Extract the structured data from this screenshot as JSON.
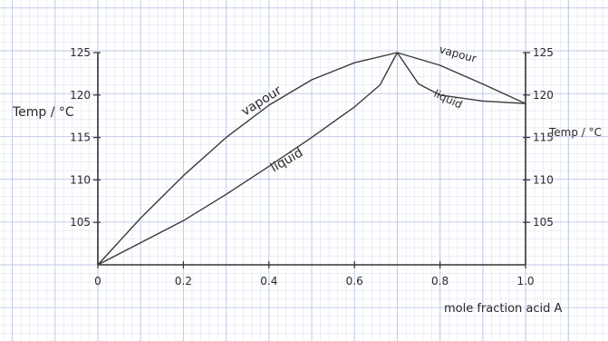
{
  "chart_data": {
    "type": "line",
    "xlabel": "mole fraction acid A",
    "ylabel_left": "Temp / °C",
    "ylabel_right": "Temp / °C",
    "xlim": [
      0,
      1.0
    ],
    "ylim": [
      100,
      125
    ],
    "x_ticks": [
      0,
      0.2,
      0.4,
      0.6,
      0.8,
      1.0
    ],
    "x_tick_labels": [
      "0",
      "0.2",
      "0.4",
      "0.6",
      "0.8",
      "1.0"
    ],
    "y_ticks": [
      105,
      110,
      115,
      120,
      125
    ],
    "y_tick_labels": [
      "105",
      "110",
      "115",
      "120",
      "125"
    ],
    "grid": true,
    "series": [
      {
        "name": "vapour",
        "points": [
          [
            0,
            100
          ],
          [
            0.1,
            105.5
          ],
          [
            0.2,
            110.5
          ],
          [
            0.3,
            115
          ],
          [
            0.4,
            118.8
          ],
          [
            0.5,
            121.8
          ],
          [
            0.6,
            123.8
          ],
          [
            0.7,
            125
          ],
          [
            0.8,
            123.5
          ],
          [
            0.9,
            121.3
          ],
          [
            1.0,
            119
          ]
        ]
      },
      {
        "name": "liquid",
        "points": [
          [
            0,
            100
          ],
          [
            0.2,
            105.2
          ],
          [
            0.3,
            108.3
          ],
          [
            0.4,
            111.6
          ],
          [
            0.5,
            115
          ],
          [
            0.6,
            118.6
          ],
          [
            0.66,
            121.2
          ],
          [
            0.7,
            125
          ],
          [
            0.75,
            121.3
          ],
          [
            0.8,
            120
          ],
          [
            0.9,
            119.3
          ],
          [
            1.0,
            119
          ]
        ]
      }
    ],
    "annotations": [
      "vapour",
      "liquid",
      "vapour",
      "liquid"
    ]
  }
}
